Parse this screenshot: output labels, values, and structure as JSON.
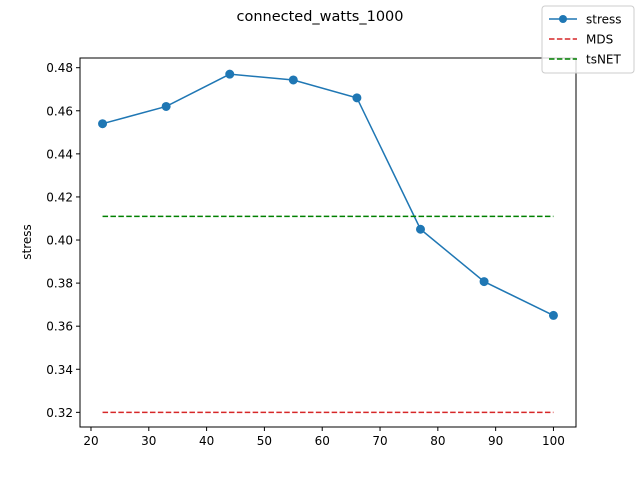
{
  "chart_data": {
    "type": "line",
    "title": "connected_watts_1000",
    "xlabel": "",
    "ylabel": "stress",
    "xlim": [
      18.1,
      103.9
    ],
    "ylim": [
      0.3132,
      0.4845
    ],
    "xticks": [
      20,
      30,
      40,
      50,
      60,
      70,
      80,
      90,
      100
    ],
    "yticks": [
      0.32,
      0.34,
      0.36,
      0.38,
      0.4,
      0.42,
      0.44,
      0.46,
      0.48
    ],
    "ytick_labels": [
      "0.32",
      "0.34",
      "0.36",
      "0.38",
      "0.40",
      "0.42",
      "0.44",
      "0.46",
      "0.48"
    ],
    "grid": false,
    "legend_position": "top-right",
    "series": [
      {
        "name": "stress",
        "style": "solid-markers",
        "color": "#1f77b4",
        "x": [
          22,
          33,
          44,
          55,
          66,
          77,
          88,
          100
        ],
        "y": [
          0.454,
          0.462,
          0.477,
          0.4743,
          0.466,
          0.405,
          0.3807,
          0.365
        ]
      },
      {
        "name": "MDS",
        "style": "dashed",
        "color": "#d62728",
        "x": [
          22,
          100
        ],
        "y": [
          0.32,
          0.32
        ]
      },
      {
        "name": "tsNET",
        "style": "dashed",
        "color": "#008000",
        "x": [
          22,
          100
        ],
        "y": [
          0.411,
          0.411
        ]
      }
    ]
  }
}
